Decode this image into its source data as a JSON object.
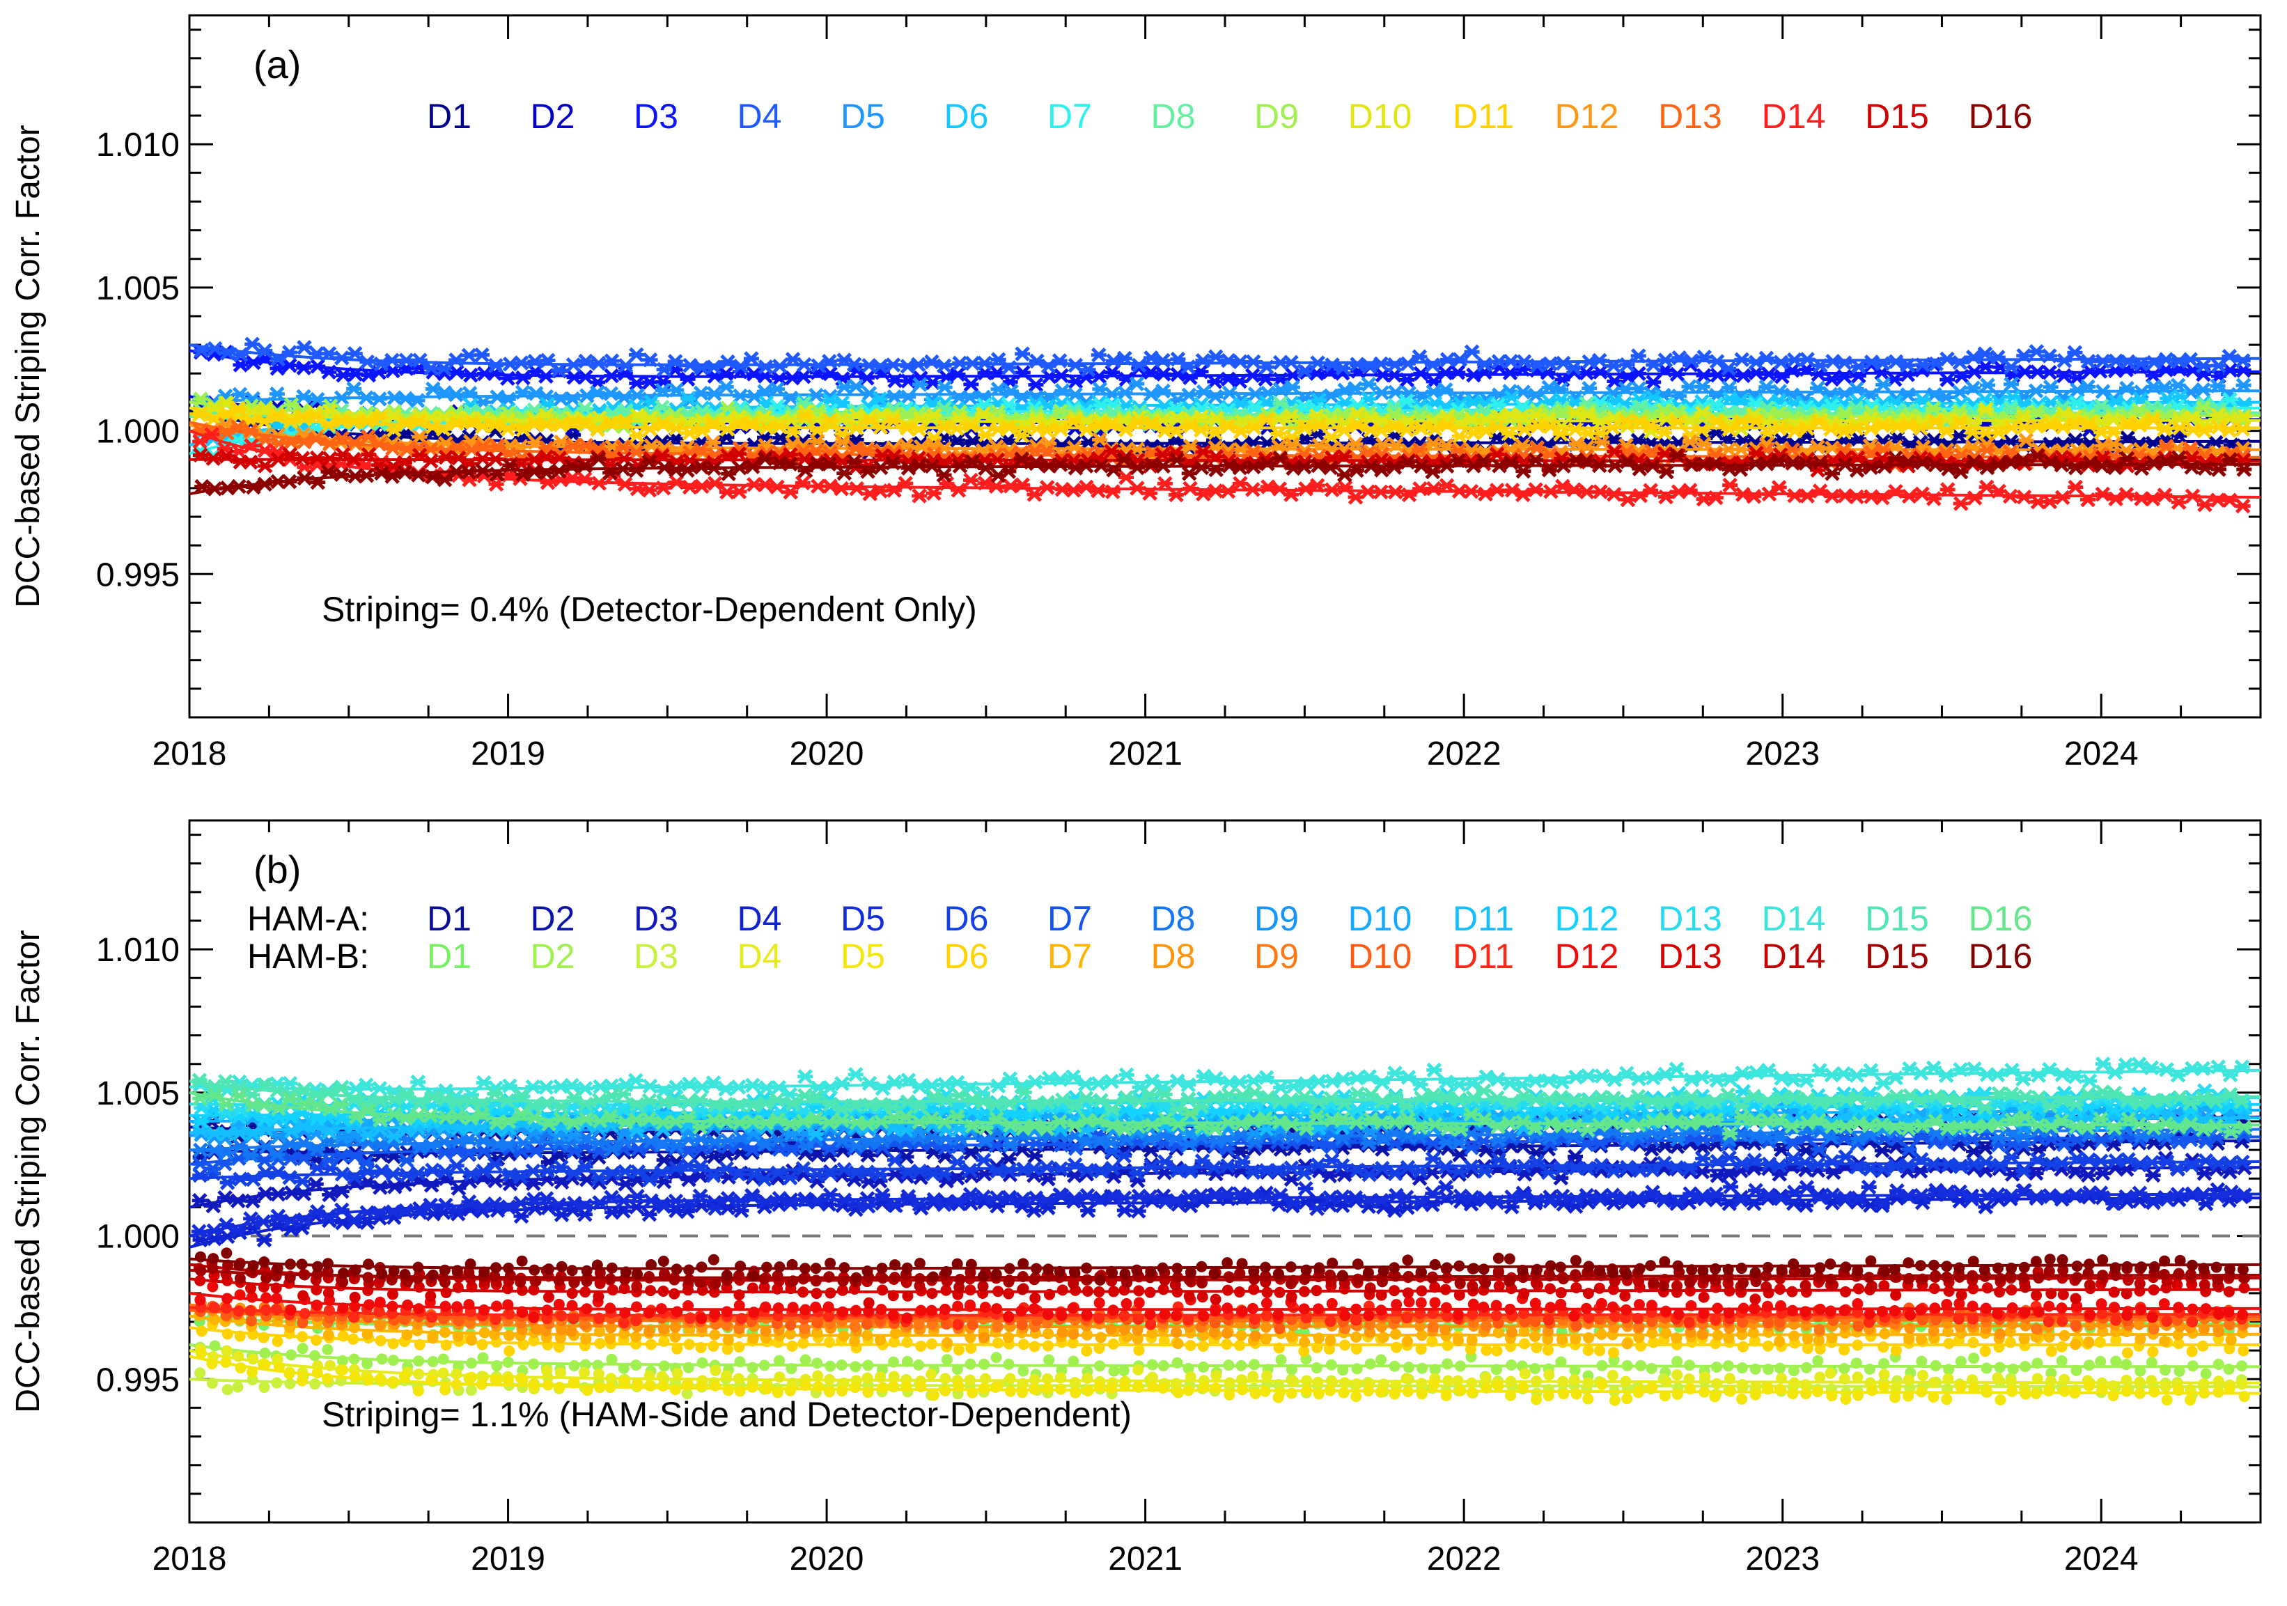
{
  "chart_data": [
    {
      "type": "scatter",
      "panel_label": "(a)",
      "ylabel": "DCC-based Striping Corr. Factor",
      "xlabel": "",
      "xlim": [
        2018.0,
        2024.5
      ],
      "ylim": [
        0.99,
        1.0145
      ],
      "x_tick_labels": [
        "2018",
        "2019",
        "2020",
        "2021",
        "2022",
        "2023",
        "2024"
      ],
      "y_tick_labels": [
        "0.995",
        "1.000",
        "1.005",
        "1.010"
      ],
      "annotation": "Striping= 0.4% (Detector-Dependent Only)",
      "legend": {
        "rows": [
          {
            "prefix": "",
            "items": [
              "D1",
              "D2",
              "D3",
              "D4",
              "D5",
              "D6",
              "D7",
              "D8",
              "D9",
              "D10",
              "D11",
              "D12",
              "D13",
              "D14",
              "D15",
              "D16"
            ]
          }
        ]
      },
      "series": [
        {
          "name": "D1",
          "color": "#00008f",
          "start": 1.0007,
          "level": 0.9995,
          "drift": 2e-05
        },
        {
          "name": "D2",
          "color": "#0000c8",
          "start": 1.0012,
          "level": 1.0002,
          "drift": 3e-05
        },
        {
          "name": "D3",
          "color": "#0a14ff",
          "start": 1.0028,
          "level": 1.0018,
          "drift": 4e-05
        },
        {
          "name": "D4",
          "color": "#1e5aff",
          "start": 1.003,
          "level": 1.0022,
          "drift": 5e-05
        },
        {
          "name": "D5",
          "color": "#1e96ff",
          "start": 1.001,
          "level": 1.0012,
          "drift": 3e-05
        },
        {
          "name": "D6",
          "color": "#14c8ff",
          "start": 0.9995,
          "level": 1.0008,
          "drift": 3e-05
        },
        {
          "name": "D7",
          "color": "#30f0ee",
          "start": 0.9992,
          "level": 1.0006,
          "drift": 3e-05
        },
        {
          "name": "D8",
          "color": "#64f0a0",
          "start": 1.0005,
          "level": 1.0005,
          "drift": 2e-05
        },
        {
          "name": "D9",
          "color": "#a0f050",
          "start": 1.001,
          "level": 1.0004,
          "drift": 2e-05
        },
        {
          "name": "D10",
          "color": "#e0e614",
          "start": 1.0008,
          "level": 1.0003,
          "drift": 1e-05
        },
        {
          "name": "D11",
          "color": "#ffd200",
          "start": 1.0006,
          "level": 1.0001,
          "drift": 0.0
        },
        {
          "name": "D12",
          "color": "#ff9614",
          "start": 1.0002,
          "level": 0.9994,
          "drift": -1e-05
        },
        {
          "name": "D13",
          "color": "#ff6414",
          "start": 1.0003,
          "level": 0.9992,
          "drift": -2e-05
        },
        {
          "name": "D14",
          "color": "#ff1e1e",
          "start": 1.0,
          "level": 0.9982,
          "drift": -8e-05
        },
        {
          "name": "D15",
          "color": "#d20000",
          "start": 0.999,
          "level": 0.999,
          "drift": -1e-05
        },
        {
          "name": "D16",
          "color": "#8c0000",
          "start": 0.9978,
          "level": 0.9987,
          "drift": 2e-05
        }
      ]
    },
    {
      "type": "scatter",
      "panel_label": "(b)",
      "ylabel": "DCC-based Striping Corr. Factor",
      "xlabel": "",
      "xlim": [
        2018.0,
        2024.5
      ],
      "ylim": [
        0.99,
        1.0145
      ],
      "x_tick_labels": [
        "2018",
        "2019",
        "2020",
        "2021",
        "2022",
        "2023",
        "2024"
      ],
      "y_tick_labels": [
        "0.995",
        "1.000",
        "1.005",
        "1.010"
      ],
      "reference_line": 1.0,
      "annotation": "Striping= 1.1% (HAM-Side and Detector-Dependent)",
      "legend": {
        "rows": [
          {
            "prefix": "HAM-A:",
            "items": [
              "D1",
              "D2",
              "D3",
              "D4",
              "D5",
              "D6",
              "D7",
              "D8",
              "D9",
              "D10",
              "D11",
              "D12",
              "D13",
              "D14",
              "D15",
              "D16"
            ]
          },
          {
            "prefix": "HAM-B:",
            "items": [
              "D1",
              "D2",
              "D3",
              "D4",
              "D5",
              "D6",
              "D7",
              "D8",
              "D9",
              "D10",
              "D11",
              "D12",
              "D13",
              "D14",
              "D15",
              "D16"
            ]
          }
        ]
      },
      "series": [
        {
          "name": "HAM-A D1",
          "color": "#0a0f96",
          "start": 1.0038,
          "level": 1.0035,
          "drift": 0.0001
        },
        {
          "name": "HAM-A D2",
          "color": "#0a14aa",
          "start": 1.003,
          "level": 1.0028,
          "drift": 8e-05
        },
        {
          "name": "HAM-A D3",
          "color": "#0f19be",
          "start": 1.001,
          "level": 1.002,
          "drift": 6e-05
        },
        {
          "name": "HAM-A D4",
          "color": "#0f23d2",
          "start": 0.9996,
          "level": 1.001,
          "drift": 5e-05
        },
        {
          "name": "HAM-A D5",
          "color": "#142ddc",
          "start": 1.0,
          "level": 1.0012,
          "drift": 4e-05
        },
        {
          "name": "HAM-A D6",
          "color": "#1441e6",
          "start": 1.002,
          "level": 1.0022,
          "drift": 6e-05
        },
        {
          "name": "HAM-A D7",
          "color": "#1455f0",
          "start": 1.0025,
          "level": 1.003,
          "drift": 7e-05
        },
        {
          "name": "HAM-A D8",
          "color": "#1478f5",
          "start": 1.003,
          "level": 1.0032,
          "drift": 8e-05
        },
        {
          "name": "HAM-A D9",
          "color": "#1496fa",
          "start": 1.0035,
          "level": 1.0036,
          "drift": 8e-05
        },
        {
          "name": "HAM-A D10",
          "color": "#14aaff",
          "start": 1.004,
          "level": 1.004,
          "drift": 6e-05
        },
        {
          "name": "HAM-A D11",
          "color": "#14beff",
          "start": 1.0036,
          "level": 1.0038,
          "drift": 5e-05
        },
        {
          "name": "HAM-A D12",
          "color": "#14d2ff",
          "start": 1.0042,
          "level": 1.0042,
          "drift": 6e-05
        },
        {
          "name": "HAM-A D13",
          "color": "#28dcf0",
          "start": 1.0046,
          "level": 1.0045,
          "drift": 5e-05
        },
        {
          "name": "HAM-A D14",
          "color": "#3ce6dc",
          "start": 1.0052,
          "level": 1.005,
          "drift": 0.00012
        },
        {
          "name": "HAM-A D15",
          "color": "#50e6b4",
          "start": 1.0054,
          "level": 1.0046,
          "drift": 4e-05
        },
        {
          "name": "HAM-A D16",
          "color": "#64e68c",
          "start": 1.005,
          "level": 1.004,
          "drift": -2e-05
        },
        {
          "name": "HAM-B D1",
          "color": "#78f064",
          "start": 0.9972,
          "level": 0.9968,
          "drift": 2e-05
        },
        {
          "name": "HAM-B D2",
          "color": "#a0f050",
          "start": 0.9962,
          "level": 0.9955,
          "drift": -1e-05
        },
        {
          "name": "HAM-B D3",
          "color": "#c8f03c",
          "start": 0.995,
          "level": 0.9948,
          "drift": -1e-05
        },
        {
          "name": "HAM-B D4",
          "color": "#e6eb1e",
          "start": 0.996,
          "level": 0.995,
          "drift": -2e-05
        },
        {
          "name": "HAM-B D5",
          "color": "#f5e60a",
          "start": 0.9958,
          "level": 0.9947,
          "drift": -3e-05
        },
        {
          "name": "HAM-B D6",
          "color": "#ffd200",
          "start": 0.9968,
          "level": 0.9962,
          "drift": 0.0
        },
        {
          "name": "HAM-B D7",
          "color": "#ffb400",
          "start": 0.9972,
          "level": 0.9965,
          "drift": 1e-05
        },
        {
          "name": "HAM-B D8",
          "color": "#ff960a",
          "start": 0.9975,
          "level": 0.9968,
          "drift": 1e-05
        },
        {
          "name": "HAM-B D9",
          "color": "#ff7814",
          "start": 0.9976,
          "level": 0.997,
          "drift": 1e-05
        },
        {
          "name": "HAM-B D10",
          "color": "#ff5a14",
          "start": 0.9974,
          "level": 0.9971,
          "drift": 1e-05
        },
        {
          "name": "HAM-B D11",
          "color": "#ff2814",
          "start": 0.9975,
          "level": 0.9972,
          "drift": 1e-05
        },
        {
          "name": "HAM-B D12",
          "color": "#f00a0a",
          "start": 0.998,
          "level": 0.9974,
          "drift": 1e-05
        },
        {
          "name": "HAM-B D13",
          "color": "#d70000",
          "start": 0.9985,
          "level": 0.998,
          "drift": 2e-05
        },
        {
          "name": "HAM-B D14",
          "color": "#be0000",
          "start": 0.999,
          "level": 0.9984,
          "drift": 2e-05
        },
        {
          "name": "HAM-B D15",
          "color": "#a00000",
          "start": 0.9988,
          "level": 0.9985,
          "drift": 2e-05
        },
        {
          "name": "HAM-B D16",
          "color": "#820000",
          "start": 0.9992,
          "level": 0.9988,
          "drift": 3e-05
        }
      ]
    }
  ]
}
